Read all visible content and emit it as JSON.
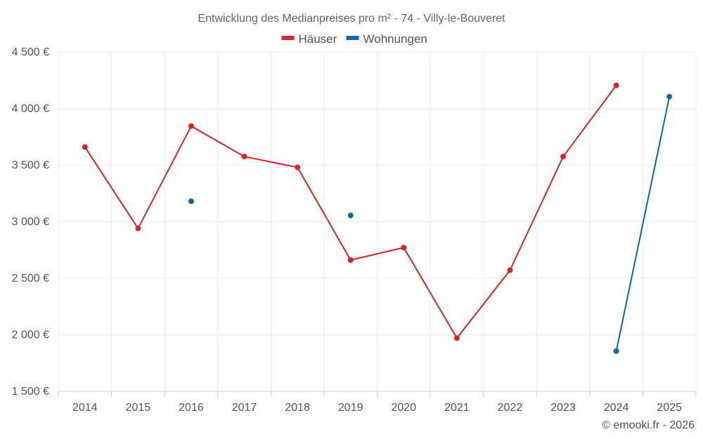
{
  "chart_data": {
    "type": "line",
    "title": "Entwicklung des Medianpreises pro m² - 74 - Villy-le-Bouveret",
    "categories": [
      "2014",
      "2015",
      "2016",
      "2017",
      "2018",
      "2019",
      "2020",
      "2021",
      "2022",
      "2023",
      "2024",
      "2025"
    ],
    "y_ticks": [
      1500,
      2000,
      2500,
      3000,
      3500,
      4000,
      4500
    ],
    "y_tick_labels": [
      "1 500 €",
      "2 000 €",
      "2 500 €",
      "3 000 €",
      "3 500 €",
      "4 000 €",
      "4 500 €"
    ],
    "ylim": [
      1500,
      4500
    ],
    "xlabel": "",
    "ylabel": "",
    "grid": true,
    "legend_position": "top-center",
    "series": [
      {
        "name": "Häuser",
        "color": "#d62728",
        "values": [
          3660,
          2940,
          3845,
          3575,
          3480,
          2660,
          2770,
          1970,
          2570,
          3575,
          4205,
          null
        ]
      },
      {
        "name": "Wohnungen",
        "color": "#0a6aa1",
        "values": [
          null,
          null,
          3180,
          null,
          null,
          3055,
          null,
          null,
          null,
          null,
          1855,
          4105
        ]
      }
    ]
  },
  "credit": "© emooki.fr - 2026"
}
